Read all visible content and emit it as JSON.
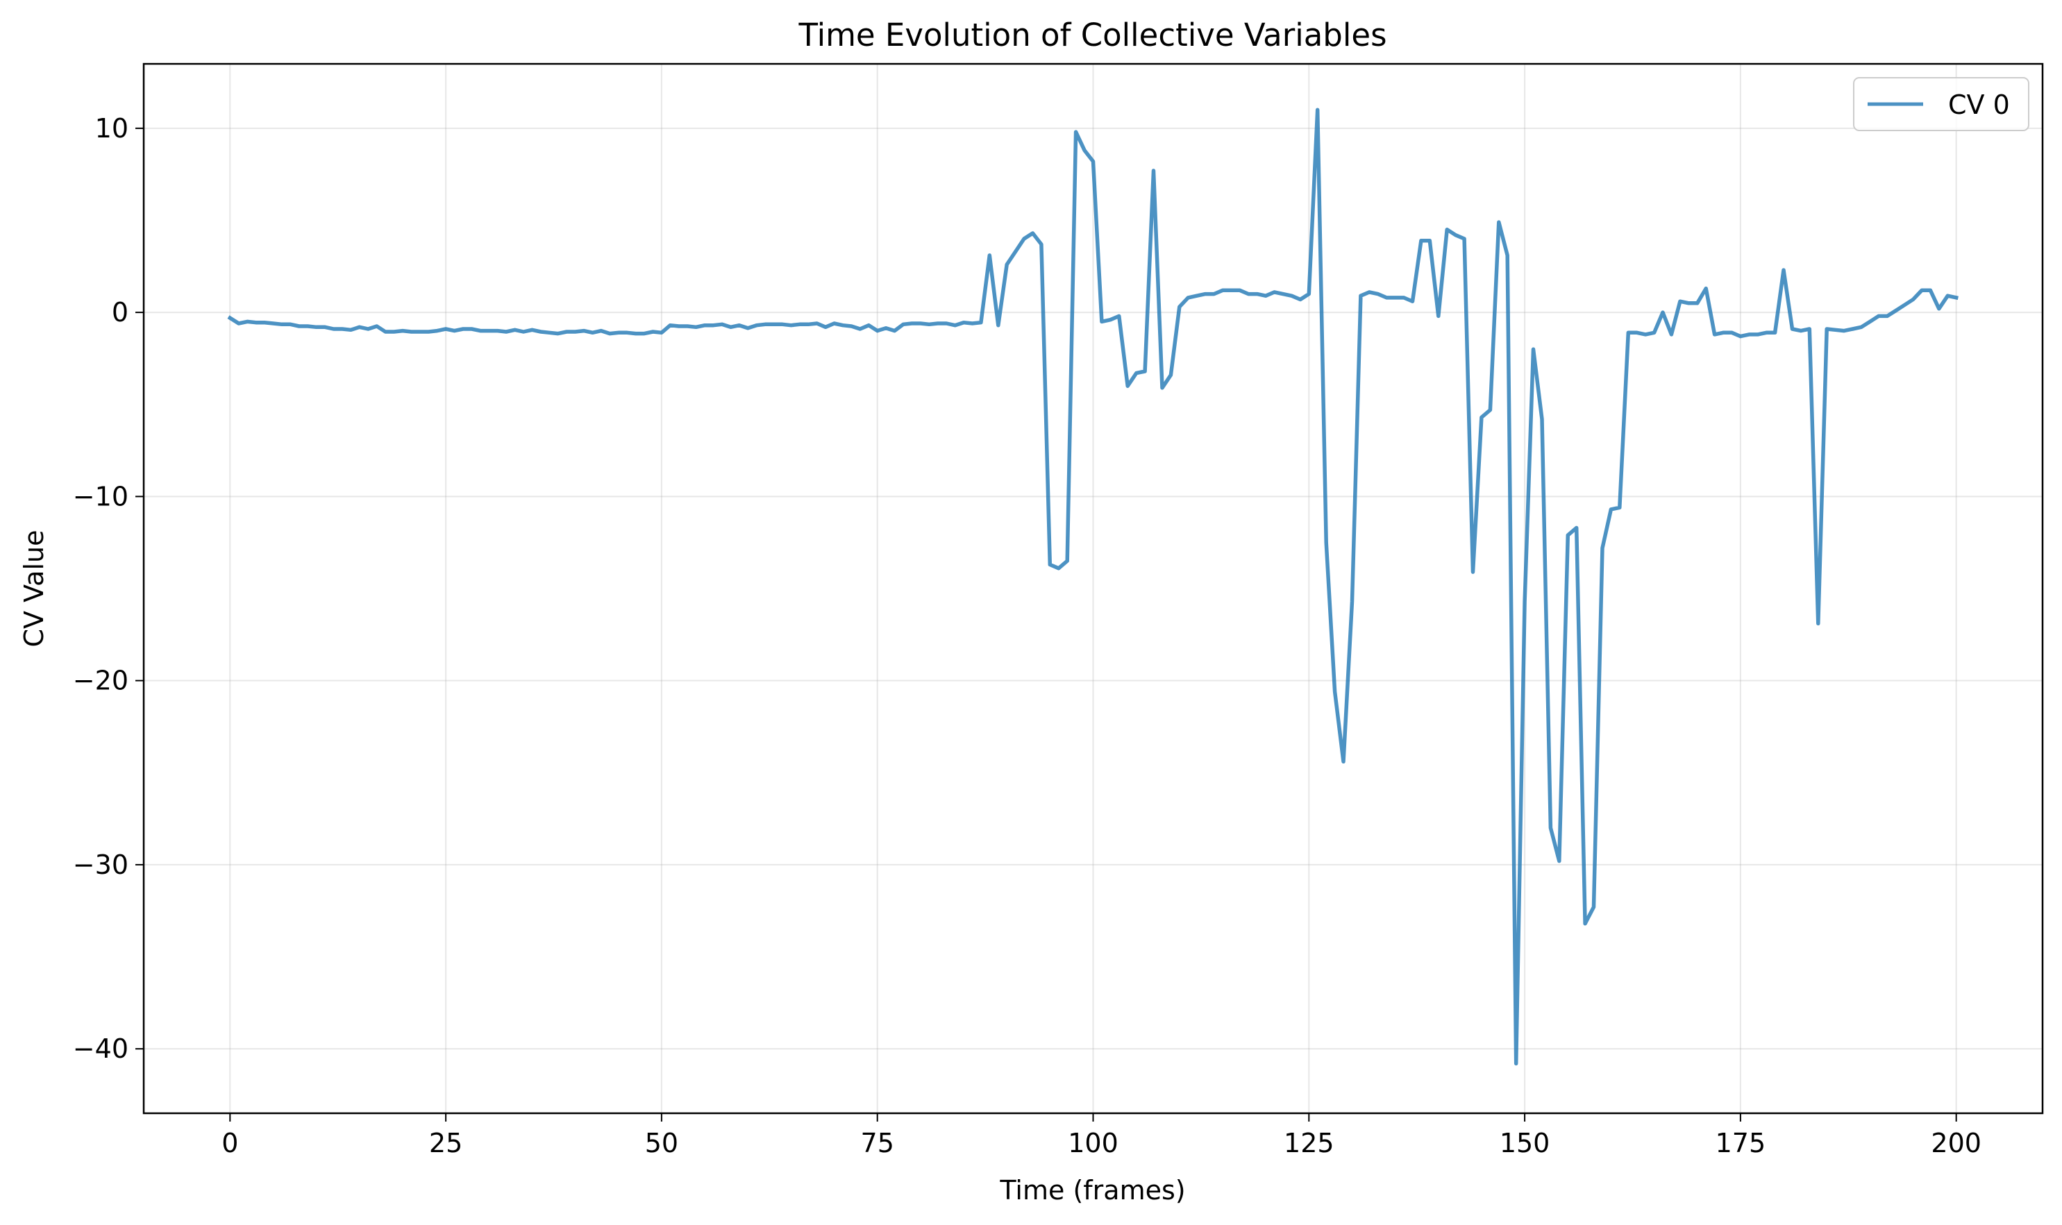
{
  "chart_data": {
    "type": "line",
    "title": "Time Evolution of Collective Variables",
    "xlabel": "Time (frames)",
    "ylabel": "CV Value",
    "xlim": [
      -10,
      210
    ],
    "ylim": [
      -43.5,
      13.5
    ],
    "xticks": [
      0,
      25,
      50,
      75,
      100,
      125,
      150,
      175,
      200
    ],
    "yticks": [
      10,
      0,
      -10,
      -20,
      -30,
      -40
    ],
    "ytick_labels": [
      "10",
      "0",
      "−10",
      "−20",
      "−30",
      "−40"
    ],
    "grid": true,
    "legend_position": "top-right",
    "series": [
      {
        "name": "CV 0",
        "color": "#1f77b4",
        "x": [
          0,
          1,
          2,
          3,
          4,
          5,
          6,
          7,
          8,
          9,
          10,
          11,
          12,
          13,
          14,
          15,
          16,
          17,
          18,
          19,
          20,
          21,
          22,
          23,
          24,
          25,
          26,
          27,
          28,
          29,
          30,
          31,
          32,
          33,
          34,
          35,
          36,
          37,
          38,
          39,
          40,
          41,
          42,
          43,
          44,
          45,
          46,
          47,
          48,
          49,
          50,
          51,
          52,
          53,
          54,
          55,
          56,
          57,
          58,
          59,
          60,
          61,
          62,
          63,
          64,
          65,
          66,
          67,
          68,
          69,
          70,
          71,
          72,
          73,
          74,
          75,
          76,
          77,
          78,
          79,
          80,
          81,
          82,
          83,
          84,
          85,
          86,
          87,
          88,
          89,
          90,
          91,
          92,
          93,
          94,
          95,
          96,
          97,
          98,
          99,
          100,
          101,
          102,
          103,
          104,
          105,
          106,
          107,
          108,
          109,
          110,
          111,
          112,
          113,
          114,
          115,
          116,
          117,
          118,
          119,
          120,
          121,
          122,
          123,
          124,
          125,
          126,
          127,
          128,
          129,
          130,
          131,
          132,
          133,
          134,
          135,
          136,
          137,
          138,
          139,
          140,
          141,
          142,
          143,
          144,
          145,
          146,
          147,
          148,
          149,
          150,
          151,
          152,
          153,
          154,
          155,
          156,
          157,
          158,
          159,
          160,
          161,
          162,
          163,
          164,
          165,
          166,
          167,
          168,
          169,
          170,
          171,
          172,
          173,
          174,
          175,
          176,
          177,
          178,
          179,
          180,
          181,
          182,
          183,
          184,
          185,
          186,
          187,
          188,
          189,
          190,
          191,
          192,
          193,
          194,
          195,
          196,
          197,
          198,
          199,
          200
        ],
        "y": [
          -0.3,
          -0.6,
          -0.5,
          -0.55,
          -0.55,
          -0.6,
          -0.65,
          -0.65,
          -0.75,
          -0.75,
          -0.8,
          -0.8,
          -0.9,
          -0.9,
          -0.95,
          -0.8,
          -0.9,
          -0.75,
          -1.05,
          -1.05,
          -1.0,
          -1.05,
          -1.05,
          -1.05,
          -1.0,
          -0.9,
          -1.0,
          -0.9,
          -0.9,
          -1.0,
          -1.0,
          -1.0,
          -1.05,
          -0.95,
          -1.05,
          -0.95,
          -1.05,
          -1.1,
          -1.15,
          -1.05,
          -1.05,
          -1.0,
          -1.1,
          -1.0,
          -1.15,
          -1.1,
          -1.1,
          -1.15,
          -1.15,
          -1.05,
          -1.1,
          -0.7,
          -0.75,
          -0.75,
          -0.8,
          -0.7,
          -0.7,
          -0.65,
          -0.8,
          -0.7,
          -0.85,
          -0.7,
          -0.65,
          -0.65,
          -0.65,
          -0.7,
          -0.65,
          -0.65,
          -0.6,
          -0.8,
          -0.6,
          -0.7,
          -0.75,
          -0.9,
          -0.7,
          -1.0,
          -0.85,
          -1.0,
          -0.65,
          -0.6,
          -0.6,
          -0.65,
          -0.6,
          -0.6,
          -0.7,
          -0.55,
          -0.6,
          -0.55,
          3.1,
          -0.7,
          2.6,
          3.3,
          4.0,
          4.3,
          3.7,
          -13.7,
          -13.9,
          -13.5,
          9.8,
          8.8,
          8.2,
          -0.5,
          -0.4,
          -0.2,
          -4.0,
          -3.3,
          -3.2,
          7.7,
          -4.1,
          -3.4,
          0.3,
          0.8,
          0.9,
          1.0,
          1.0,
          1.2,
          1.2,
          1.2,
          1.0,
          1.0,
          0.9,
          1.1,
          1.0,
          0.9,
          0.7,
          1.0,
          11.0,
          -12.5,
          -20.6,
          -24.4,
          -15.7,
          0.9,
          1.1,
          1.0,
          0.8,
          0.8,
          0.8,
          0.6,
          3.9,
          3.9,
          -0.2,
          4.5,
          4.2,
          4.0,
          -14.1,
          -5.7,
          -5.3,
          4.9,
          3.1,
          -40.8,
          -15.7,
          -2.0,
          -5.8,
          -28.0,
          -29.8,
          -12.1,
          -11.7,
          -33.2,
          -32.3,
          -12.8,
          -10.7,
          -10.6,
          -1.1,
          -1.1,
          -1.2,
          -1.1,
          0.0,
          -1.2,
          0.6,
          0.5,
          0.5,
          1.3,
          -1.2,
          -1.1,
          -1.1,
          -1.3,
          -1.2,
          -1.2,
          -1.1,
          -1.1,
          2.3,
          -0.9,
          -1.0,
          -0.9,
          -16.9,
          -0.9,
          -0.95,
          -1.0,
          -0.9,
          -0.8,
          -0.5,
          -0.2,
          -0.2,
          0.1,
          0.4,
          0.7,
          1.2,
          1.2,
          0.2,
          0.9,
          0.8
        ]
      }
    ]
  }
}
